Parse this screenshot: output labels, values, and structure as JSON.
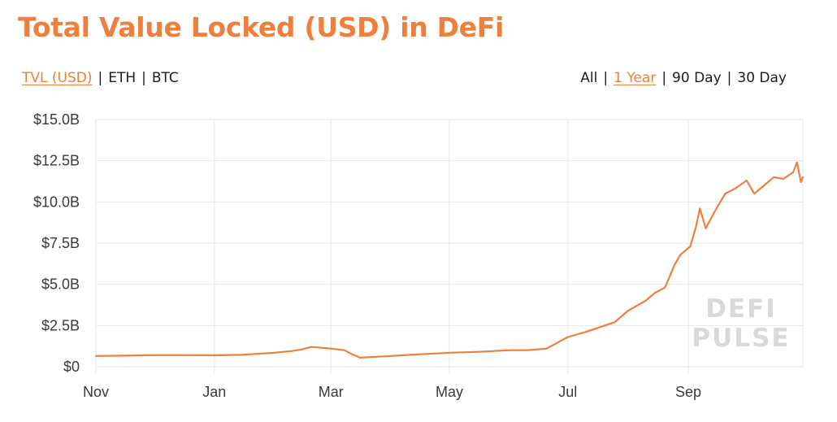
{
  "header": {
    "title": "Total Value Locked (USD) in DeFi"
  },
  "metric_tabs": [
    {
      "label": "TVL (USD)",
      "active": true
    },
    {
      "label": "ETH",
      "active": false
    },
    {
      "label": "BTC",
      "active": false
    }
  ],
  "range_tabs": [
    {
      "label": "All",
      "active": false
    },
    {
      "label": "1 Year",
      "active": true
    },
    {
      "label": "90 Day",
      "active": false
    },
    {
      "label": "30 Day",
      "active": false
    }
  ],
  "watermark": {
    "line1": "DEFI",
    "line2": "PULSE"
  },
  "colors": {
    "accent": "#ee7f3c",
    "grid": "#e6e6e6",
    "text": "#1d1d1d"
  },
  "chart_data": {
    "type": "line",
    "title": "Total Value Locked (USD) in DeFi",
    "xlabel": "",
    "ylabel": "",
    "y_unit": "USD billions",
    "ylim": [
      0,
      15
    ],
    "yticks": [
      0,
      2.5,
      5,
      7.5,
      10,
      12.5,
      15
    ],
    "ytick_labels": [
      "$0",
      "$2.5B",
      "$5.0B",
      "$7.5B",
      "$10.0B",
      "$12.5B",
      "$15.0B"
    ],
    "xlim": [
      "2019-11-01",
      "2020-10-30"
    ],
    "xticks": [
      "2019-11-01",
      "2020-01-01",
      "2020-03-01",
      "2020-05-01",
      "2020-07-01",
      "2020-09-01"
    ],
    "xtick_labels": [
      "Nov",
      "Jan",
      "Mar",
      "May",
      "Jul",
      "Sep"
    ],
    "grid": true,
    "series": [
      {
        "color": "#ee7f3c",
        "x": [
          "2019-11-01",
          "2019-11-15",
          "2019-12-01",
          "2019-12-15",
          "2020-01-01",
          "2020-01-15",
          "2020-02-01",
          "2020-02-10",
          "2020-02-15",
          "2020-02-20",
          "2020-03-01",
          "2020-03-08",
          "2020-03-12",
          "2020-03-16",
          "2020-04-01",
          "2020-04-15",
          "2020-05-01",
          "2020-05-15",
          "2020-06-01",
          "2020-06-10",
          "2020-06-15",
          "2020-06-20",
          "2020-07-01",
          "2020-07-10",
          "2020-07-20",
          "2020-07-25",
          "2020-08-01",
          "2020-08-10",
          "2020-08-15",
          "2020-08-20",
          "2020-08-25",
          "2020-08-28",
          "2020-09-02",
          "2020-09-05",
          "2020-09-07",
          "2020-09-10",
          "2020-09-15",
          "2020-09-20",
          "2020-09-25",
          "2020-10-01",
          "2020-10-05",
          "2020-10-10",
          "2020-10-15",
          "2020-10-20",
          "2020-10-25",
          "2020-10-27",
          "2020-10-29",
          "2020-10-30"
        ],
        "y": [
          0.65,
          0.67,
          0.7,
          0.7,
          0.69,
          0.72,
          0.85,
          0.95,
          1.05,
          1.2,
          1.1,
          1.0,
          0.75,
          0.55,
          0.65,
          0.75,
          0.85,
          0.9,
          1.0,
          1.0,
          1.05,
          1.1,
          1.8,
          2.1,
          2.5,
          2.7,
          3.4,
          4.0,
          4.5,
          4.8,
          6.2,
          6.8,
          7.3,
          8.5,
          9.6,
          8.4,
          9.5,
          10.5,
          10.8,
          11.3,
          10.5,
          11.0,
          11.5,
          11.4,
          11.8,
          12.4,
          11.2,
          11.5
        ]
      }
    ]
  }
}
